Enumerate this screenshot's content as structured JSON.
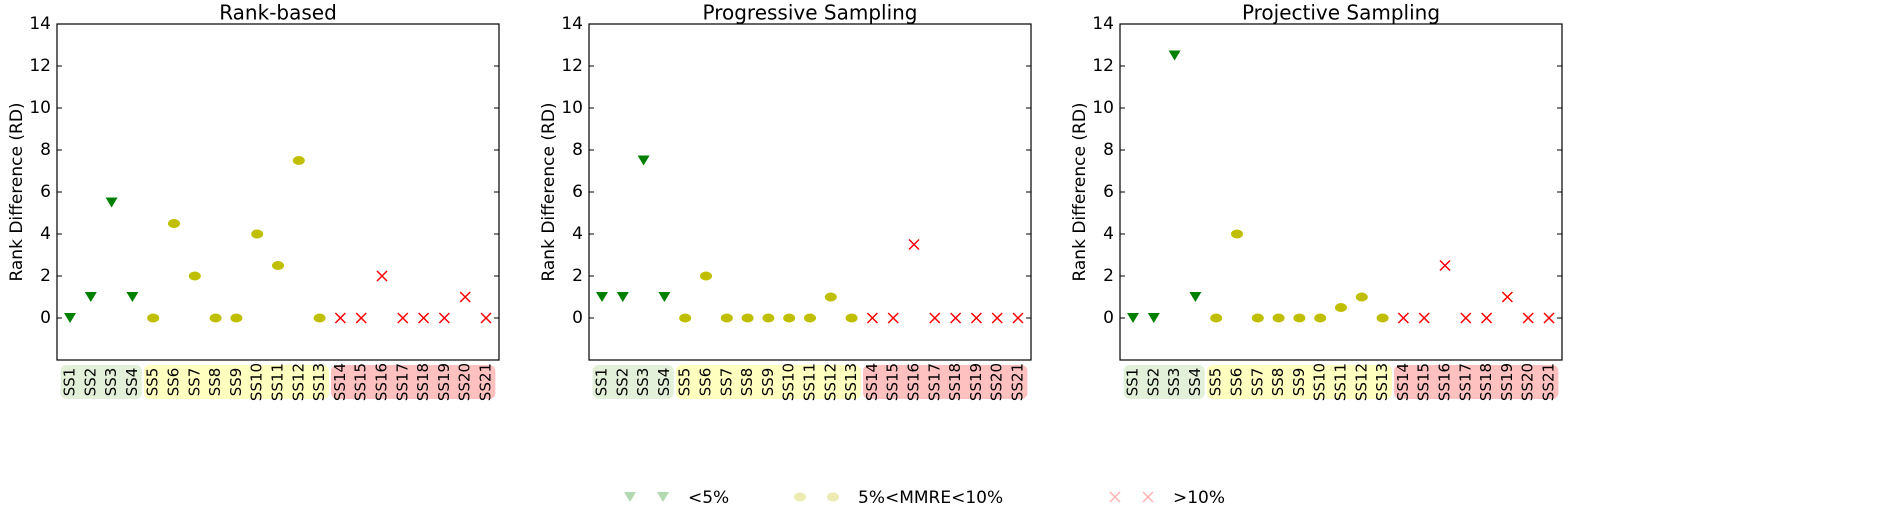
{
  "legend": [
    {
      "name": "<5%",
      "color": "#008000",
      "marker": "triangle-down"
    },
    {
      "name": "5%<MMRE<10%",
      "color": "#bfbf00",
      "marker": "ellipse"
    },
    {
      "name": ">10%",
      "color": "#ff0000",
      "marker": "x"
    }
  ],
  "chart_data": [
    {
      "type": "scatter",
      "title": "Rank-based",
      "ylabel": "Rank Difference (RD)",
      "categories": [
        "SS1",
        "SS2",
        "SS3",
        "SS4",
        "SS5",
        "SS6",
        "SS7",
        "SS8",
        "SS9",
        "SS10",
        "SS11",
        "SS12",
        "SS13",
        "SS14",
        "SS15",
        "SS16",
        "SS17",
        "SS18",
        "SS19",
        "SS20",
        "SS21"
      ],
      "ylim": [
        -2,
        14
      ],
      "yticks": [
        0,
        2,
        4,
        6,
        8,
        10,
        12,
        14
      ],
      "series": [
        {
          "color": "#008000",
          "marker": "triangle-down",
          "values": [
            0,
            1,
            5.5,
            1,
            null,
            null,
            null,
            null,
            null,
            null,
            null,
            null,
            null,
            null,
            null,
            null,
            null,
            null,
            null,
            null,
            null
          ]
        },
        {
          "color": "#bfbf00",
          "marker": "ellipse",
          "values": [
            null,
            null,
            null,
            null,
            0,
            4.5,
            2,
            0,
            0,
            4,
            2.5,
            7.5,
            0,
            null,
            null,
            null,
            null,
            null,
            null,
            null,
            null
          ]
        },
        {
          "color": "#ff0000",
          "marker": "x",
          "values": [
            null,
            null,
            null,
            null,
            null,
            null,
            null,
            null,
            null,
            null,
            null,
            null,
            null,
            0,
            0,
            2,
            0,
            0,
            0,
            1,
            0
          ]
        }
      ]
    },
    {
      "type": "scatter",
      "title": "Progressive Sampling",
      "ylabel": "Rank Difference (RD)",
      "categories": [
        "SS1",
        "SS2",
        "SS3",
        "SS4",
        "SS5",
        "SS6",
        "SS7",
        "SS8",
        "SS9",
        "SS10",
        "SS11",
        "SS12",
        "SS13",
        "SS14",
        "SS15",
        "SS16",
        "SS17",
        "SS18",
        "SS19",
        "SS20",
        "SS21"
      ],
      "ylim": [
        -2,
        14
      ],
      "yticks": [
        0,
        2,
        4,
        6,
        8,
        10,
        12,
        14
      ],
      "series": [
        {
          "color": "#008000",
          "marker": "triangle-down",
          "values": [
            1,
            1,
            7.5,
            1,
            null,
            null,
            null,
            null,
            null,
            null,
            null,
            null,
            null,
            null,
            null,
            null,
            null,
            null,
            null,
            null,
            null
          ]
        },
        {
          "color": "#bfbf00",
          "marker": "ellipse",
          "values": [
            null,
            null,
            null,
            null,
            0,
            2,
            0,
            0,
            0,
            0,
            0,
            1,
            0,
            null,
            null,
            null,
            null,
            null,
            null,
            null,
            null
          ]
        },
        {
          "color": "#ff0000",
          "marker": "x",
          "values": [
            null,
            null,
            null,
            null,
            null,
            null,
            null,
            null,
            null,
            null,
            null,
            null,
            null,
            0,
            0,
            3.5,
            0,
            0,
            0,
            0,
            0
          ]
        }
      ]
    },
    {
      "type": "scatter",
      "title": "Projective Sampling",
      "ylabel": "Rank Difference (RD)",
      "categories": [
        "SS1",
        "SS2",
        "SS3",
        "SS4",
        "SS5",
        "SS6",
        "SS7",
        "SS8",
        "SS9",
        "SS10",
        "SS11",
        "SS12",
        "SS13",
        "SS14",
        "SS15",
        "SS16",
        "SS17",
        "SS18",
        "SS19",
        "SS20",
        "SS21"
      ],
      "ylim": [
        -2,
        14
      ],
      "yticks": [
        0,
        2,
        4,
        6,
        8,
        10,
        12,
        14
      ],
      "series": [
        {
          "color": "#008000",
          "marker": "triangle-down",
          "values": [
            0,
            0,
            12.5,
            1,
            null,
            null,
            null,
            null,
            null,
            null,
            null,
            null,
            null,
            null,
            null,
            null,
            null,
            null,
            null,
            null,
            null
          ]
        },
        {
          "color": "#bfbf00",
          "marker": "ellipse",
          "values": [
            null,
            null,
            null,
            null,
            0,
            4,
            0,
            0,
            0,
            0,
            0.5,
            1,
            0,
            null,
            null,
            null,
            null,
            null,
            null,
            null,
            null
          ]
        },
        {
          "color": "#ff0000",
          "marker": "x",
          "values": [
            null,
            null,
            null,
            null,
            null,
            null,
            null,
            null,
            null,
            null,
            null,
            null,
            null,
            0,
            0,
            2.5,
            0,
            0,
            1,
            0,
            0
          ]
        }
      ]
    }
  ]
}
